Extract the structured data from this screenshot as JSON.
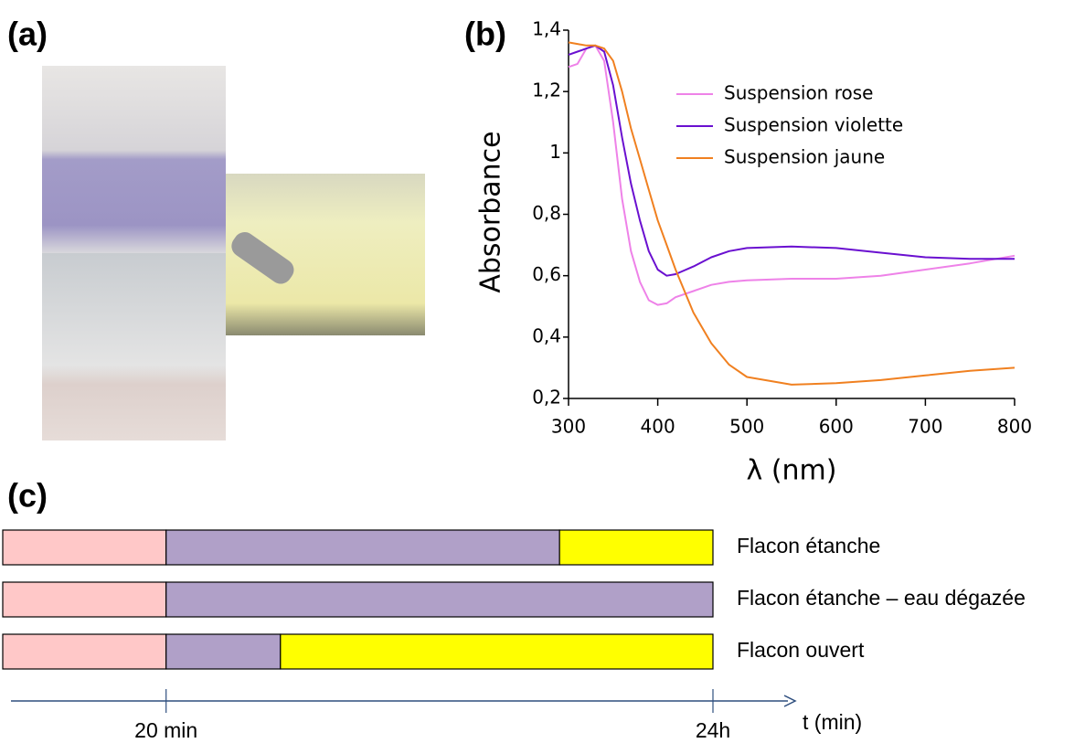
{
  "panel_labels": [
    "(a)",
    "(b)",
    "(c)"
  ],
  "chart_data": [
    {
      "type": "line",
      "x_label": "λ (nm)",
      "y_label": "Absorbance",
      "x": [
        300,
        310,
        320,
        330,
        340,
        350,
        360,
        370,
        380,
        390,
        400,
        410,
        420,
        440,
        460,
        480,
        500,
        550,
        600,
        650,
        700,
        750,
        800
      ],
      "series": [
        {
          "name": "Suspension rose",
          "color": "#ee82e8",
          "values": [
            1.28,
            1.29,
            1.34,
            1.35,
            1.3,
            1.1,
            0.85,
            0.68,
            0.58,
            0.52,
            0.505,
            0.51,
            0.53,
            0.55,
            0.57,
            0.58,
            0.585,
            0.59,
            0.59,
            0.6,
            0.62,
            0.64,
            0.665
          ]
        },
        {
          "name": "Suspension violette",
          "color": "#6a10d0",
          "values": [
            1.32,
            1.33,
            1.34,
            1.35,
            1.33,
            1.22,
            1.05,
            0.9,
            0.78,
            0.68,
            0.62,
            0.6,
            0.605,
            0.63,
            0.66,
            0.68,
            0.69,
            0.695,
            0.69,
            0.675,
            0.66,
            0.655,
            0.655
          ]
        },
        {
          "name": "Suspension jaune",
          "color": "#f08020",
          "values": [
            1.36,
            1.355,
            1.35,
            1.35,
            1.34,
            1.3,
            1.2,
            1.08,
            0.98,
            0.88,
            0.78,
            0.7,
            0.62,
            0.48,
            0.38,
            0.31,
            0.27,
            0.245,
            0.25,
            0.26,
            0.275,
            0.29,
            0.3
          ]
        }
      ],
      "xlim": [
        300,
        800
      ],
      "xticks": [
        300,
        400,
        500,
        600,
        700,
        800
      ],
      "ylim": [
        0.2,
        1.4
      ],
      "yticks": [
        {
          "value": 0.2,
          "label": "0,2"
        },
        {
          "value": 0.4,
          "label": "0,4"
        },
        {
          "value": 0.6,
          "label": "0,6"
        },
        {
          "value": 0.8,
          "label": "0,8"
        },
        1,
        {
          "value": 1.2,
          "label": "1,2"
        },
        {
          "value": 1.4,
          "label": "1,4"
        }
      ],
      "grid": false,
      "legend": "upper right"
    },
    {
      "type": "bar",
      "orientation": "horizontal",
      "stacked": true,
      "x_label": "t (min)",
      "categories": [
        "Flacon étanche",
        "Flacon étanche – eau dégazée",
        "Flacon ouvert"
      ],
      "series": [
        {
          "color": "#ffc8c8",
          "values": [
            23,
            23,
            23
          ]
        },
        {
          "color": "#b0a0c8",
          "values": [
            55.4,
            77,
            16.1
          ]
        },
        {
          "color": "#ffff00",
          "values": [
            21.6,
            0,
            60.9
          ]
        }
      ],
      "xlim": [
        0,
        100
      ],
      "xticks": [
        {
          "value": 23,
          "label": "20 min"
        },
        {
          "value": 100,
          "label": "24h"
        }
      ]
    }
  ]
}
